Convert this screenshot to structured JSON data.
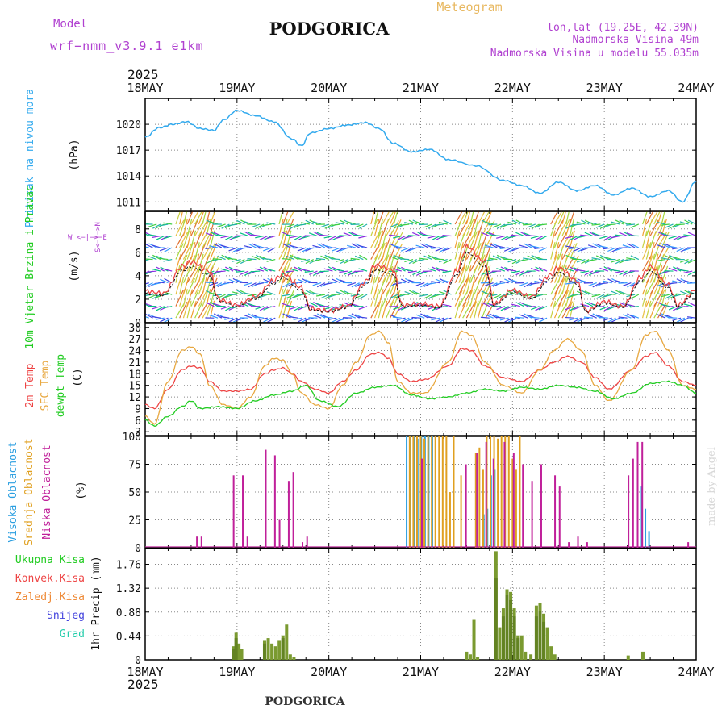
{
  "header": {
    "model_label": "Model",
    "model_name": "wrf−nmm_v3.9.1 e1km",
    "title": "PODGORICA",
    "meteogram_label": "Meteogram",
    "coords": "lon,lat (19.25E, 42.39N)",
    "elevation": "Nadmorska Visina 49m",
    "model_elevation": "Nadmorska Visina u modelu 55.035m",
    "footer_title": "PODGORICA",
    "credit": "made by Angel",
    "year": "2025"
  },
  "colors": {
    "pressure": "#33aaee",
    "temp2m": "#ee4444",
    "sfc": "#e8a840",
    "dewpt": "#22cc22",
    "purple": "#b040d0",
    "precip": "#6a8a20"
  },
  "chart_data": [
    {
      "type": "line",
      "panel": "pressure",
      "ylabel": "Pritisak na nivou mora",
      "unit": "(hPa)",
      "x_ticks": [
        "18MAY",
        "19MAY",
        "20MAY",
        "21MAY",
        "22MAY",
        "23MAY",
        "24MAY"
      ],
      "xlim_days": [
        0,
        6
      ],
      "ylim": [
        1010,
        1023
      ],
      "yticks": [
        1011,
        1014,
        1017,
        1020
      ],
      "series": [
        {
          "x": [
            0,
            0.15,
            0.3,
            0.45,
            0.6,
            0.75,
            0.85,
            1.0,
            1.2,
            1.4,
            1.6,
            1.7,
            1.8,
            2.0,
            2.2,
            2.4,
            2.55,
            2.7,
            2.9,
            3.1,
            3.3,
            3.6,
            3.9,
            4.1,
            4.3,
            4.5,
            4.7,
            4.9,
            5.1,
            5.3,
            5.5,
            5.7,
            5.85,
            6.0
          ],
          "values": [
            1018.5,
            1019.6,
            1020.0,
            1020.3,
            1019.5,
            1019.3,
            1020.5,
            1021.6,
            1021.0,
            1020.3,
            1018.3,
            1017.5,
            1019.0,
            1019.5,
            1019.9,
            1020.2,
            1019.5,
            1017.8,
            1016.8,
            1017.1,
            1015.9,
            1015.2,
            1013.5,
            1012.9,
            1012.0,
            1013.3,
            1012.3,
            1012.9,
            1011.8,
            1012.6,
            1011.6,
            1012.3,
            1011.0,
            1013.4
          ]
        }
      ]
    },
    {
      "type": "line",
      "panel": "wind",
      "ylabel": "10m Vjetar Brzina i Pravac",
      "unit": "(m/s)",
      "compass": "W <−|−> E",
      "ns": "S<−|−>N",
      "ylim": [
        0,
        9.5
      ],
      "yticks": [
        0,
        2,
        4,
        6,
        8
      ],
      "series": [
        {
          "name": "speed",
          "x": [
            0,
            0.2,
            0.4,
            0.5,
            0.7,
            0.8,
            1.0,
            1.2,
            1.4,
            1.5,
            1.7,
            1.8,
            2.0,
            2.2,
            2.4,
            2.5,
            2.7,
            2.8,
            3.0,
            3.2,
            3.4,
            3.5,
            3.7,
            3.8,
            4.0,
            4.2,
            4.4,
            4.5,
            4.7,
            4.8,
            5.0,
            5.2,
            5.4,
            5.5,
            5.7,
            5.8,
            6.0
          ],
          "values": [
            2.7,
            2.5,
            4.8,
            5.2,
            4.4,
            2.0,
            1.5,
            2.2,
            3.6,
            4.2,
            3.0,
            1.2,
            1.0,
            1.4,
            3.5,
            4.9,
            4.5,
            1.5,
            1.6,
            1.4,
            4.5,
            6.5,
            5.2,
            1.6,
            2.8,
            2.2,
            4.0,
            4.7,
            3.6,
            1.0,
            1.8,
            1.4,
            3.9,
            4.8,
            3.2,
            1.5,
            2.8
          ]
        }
      ]
    },
    {
      "type": "line",
      "panel": "temperature",
      "ylabel": "2m Temp / SFC Temp / dewpt Temp",
      "unit": "(C)",
      "ylim": [
        2,
        31
      ],
      "yticks": [
        3,
        6,
        9,
        12,
        15,
        18,
        21,
        24,
        27,
        30
      ],
      "series": [
        {
          "name": "2m Temp",
          "x": [
            0,
            0.1,
            0.25,
            0.4,
            0.5,
            0.6,
            0.7,
            0.85,
            1.0,
            1.15,
            1.3,
            1.4,
            1.5,
            1.6,
            1.7,
            1.85,
            2.0,
            2.15,
            2.3,
            2.45,
            2.55,
            2.65,
            2.75,
            2.9,
            3.05,
            3.3,
            3.45,
            3.55,
            3.7,
            3.9,
            4.1,
            4.3,
            4.45,
            4.6,
            4.75,
            4.9,
            5.05,
            5.3,
            5.45,
            5.55,
            5.7,
            5.85,
            6.0
          ],
          "values": [
            10,
            9,
            14,
            19,
            20,
            19.5,
            16,
            13.5,
            13.5,
            14,
            18,
            19,
            19.5,
            18,
            16,
            14,
            13,
            16,
            19,
            23,
            23.5,
            22,
            18,
            16,
            16.5,
            20,
            24.5,
            24,
            20,
            17,
            16,
            19,
            21,
            22.5,
            21,
            17,
            14,
            19,
            22.5,
            23.5,
            20,
            16,
            15
          ]
        },
        {
          "name": "SFC Temp",
          "x": [
            0,
            0.1,
            0.25,
            0.4,
            0.5,
            0.6,
            0.7,
            0.85,
            1.0,
            1.15,
            1.3,
            1.4,
            1.5,
            1.6,
            1.7,
            1.85,
            2.0,
            2.15,
            2.3,
            2.45,
            2.55,
            2.65,
            2.75,
            2.9,
            3.05,
            3.3,
            3.45,
            3.55,
            3.7,
            3.9,
            4.1,
            4.3,
            4.45,
            4.6,
            4.75,
            4.9,
            5.05,
            5.3,
            5.45,
            5.55,
            5.7,
            5.85,
            6.0
          ],
          "values": [
            7,
            5,
            16,
            24,
            25,
            23,
            15,
            10,
            9,
            12,
            20,
            22,
            21.5,
            18,
            13,
            10,
            9,
            15,
            21,
            28,
            29,
            26,
            16,
            13,
            13,
            21,
            29,
            28,
            21,
            15,
            13,
            19,
            24,
            27,
            24,
            15,
            11,
            19,
            28,
            29,
            24,
            15,
            14
          ]
        },
        {
          "name": "dewpt Temp",
          "x": [
            0,
            0.1,
            0.25,
            0.4,
            0.5,
            0.6,
            0.8,
            1.0,
            1.2,
            1.4,
            1.6,
            1.75,
            1.9,
            2.1,
            2.3,
            2.5,
            2.7,
            2.9,
            3.1,
            3.3,
            3.5,
            3.7,
            3.9,
            4.1,
            4.3,
            4.5,
            4.7,
            4.9,
            5.1,
            5.3,
            5.5,
            5.7,
            5.85,
            6.0
          ],
          "values": [
            6,
            4.5,
            7,
            9.5,
            11,
            9,
            9.5,
            9,
            11,
            12.5,
            13.5,
            15,
            11,
            9.5,
            13,
            14.5,
            15,
            12.5,
            11.5,
            12,
            13,
            14,
            13.5,
            14.5,
            14,
            15,
            14.5,
            13.5,
            11.5,
            13,
            15.5,
            16,
            15,
            13
          ]
        }
      ]
    },
    {
      "type": "bar",
      "panel": "cloud",
      "ylabel": "Visoka Oblacnost / Srednja Oblacnost / Niska Oblacnost",
      "unit": "(%)",
      "ylim": [
        0,
        100
      ],
      "yticks": [
        0,
        25,
        50,
        75,
        100
      ],
      "series": [
        {
          "name": "Visoka Oblacnost",
          "x": [
            2.86,
            2.9,
            2.94,
            2.98,
            3.02,
            3.06,
            3.1,
            3.14,
            3.7,
            3.74,
            3.78,
            3.82,
            5.42,
            5.46,
            5.5
          ],
          "values": [
            100,
            100,
            100,
            98,
            100,
            100,
            100,
            100,
            30,
            35,
            65,
            70,
            55,
            35,
            15
          ]
        },
        {
          "name": "Srednja Oblacnost",
          "x": [
            2.88,
            2.92,
            2.96,
            3.0,
            3.04,
            3.08,
            3.12,
            3.16,
            3.2,
            3.24,
            3.28,
            3.32,
            3.36,
            3.44,
            3.6,
            3.64,
            3.68,
            3.72,
            3.76,
            3.8,
            3.84,
            3.88,
            3.92,
            3.96,
            4.0,
            4.04,
            4.08,
            4.12
          ],
          "values": [
            100,
            100,
            100,
            100,
            98,
            100,
            100,
            100,
            100,
            100,
            100,
            50,
            100,
            65,
            85,
            90,
            70,
            100,
            100,
            100,
            98,
            100,
            100,
            100,
            80,
            70,
            100,
            30
          ]
        },
        {
          "name": "Niska Oblacnost",
          "x": [
            0.55,
            0.6,
            0.95,
            1.05,
            1.1,
            1.3,
            1.4,
            1.45,
            1.55,
            1.6,
            1.7,
            1.75,
            3.0,
            3.48,
            3.6,
            3.7,
            3.78,
            3.9,
            4.0,
            4.1,
            4.2,
            4.3,
            4.45,
            4.5,
            4.6,
            4.7,
            4.8,
            5.25,
            5.3,
            5.35,
            5.4,
            5.9
          ],
          "values": [
            10,
            10,
            65,
            65,
            10,
            88,
            83,
            25,
            60,
            68,
            5,
            10,
            80,
            75,
            85,
            95,
            80,
            95,
            85,
            75,
            60,
            75,
            65,
            55,
            5,
            10,
            5,
            65,
            80,
            95,
            95,
            5
          ]
        }
      ]
    },
    {
      "type": "bar",
      "panel": "precip",
      "ylabel": "1hr Precip",
      "unit": "(mm)",
      "ylim": [
        0,
        2.05
      ],
      "yticks": [
        0,
        0.44,
        0.88,
        1.32,
        1.76
      ],
      "legend": [
        "Ukupna Kisa",
        "Konvek.Kisa",
        "Zaledj.Kisa",
        "Snijeg",
        "Grad"
      ],
      "series": [
        {
          "name": "Ukupna Kisa",
          "x": [
            0.96,
            0.99,
            1.02,
            1.05,
            1.3,
            1.34,
            1.38,
            1.42,
            1.46,
            1.5,
            1.54,
            1.58,
            1.62,
            3.5,
            3.54,
            3.58,
            3.62,
            3.82,
            3.86,
            3.9,
            3.94,
            3.98,
            4.02,
            4.06,
            4.1,
            4.14,
            4.2,
            4.26,
            4.3,
            4.34,
            4.38,
            4.42,
            4.46,
            5.26,
            5.42
          ],
          "values": [
            0.25,
            0.5,
            0.3,
            0.2,
            0.35,
            0.4,
            0.3,
            0.25,
            0.35,
            0.45,
            0.65,
            0.1,
            0.05,
            0.15,
            0.1,
            0.75,
            0.05,
            2.0,
            0.6,
            0.95,
            1.3,
            1.25,
            0.95,
            0.45,
            0.45,
            0.15,
            0.1,
            1.0,
            1.05,
            0.85,
            0.6,
            0.25,
            0.1,
            0.08,
            0.15
          ]
        },
        {
          "name": "Konvek.Kisa",
          "x": [
            0.96,
            0.99,
            1.3,
            1.5,
            3.82,
            3.9,
            3.94,
            3.98,
            4.02,
            4.06,
            4.26,
            4.3,
            4.34
          ],
          "values": [
            0.2,
            0.4,
            0.3,
            0.4,
            1.5,
            0.8,
            1.2,
            1.1,
            0.8,
            0.4,
            0.8,
            0.9,
            0.7
          ]
        }
      ]
    }
  ]
}
